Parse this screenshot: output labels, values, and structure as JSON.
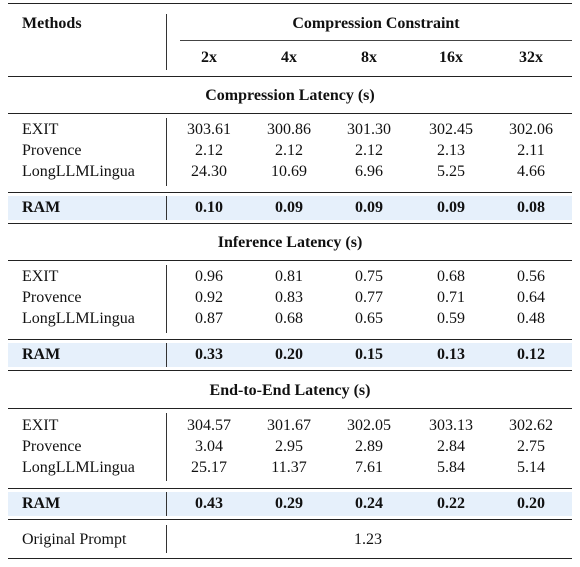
{
  "header": {
    "methods_label": "Methods",
    "constraint_label": "Compression Constraint",
    "columns": [
      "2x",
      "4x",
      "8x",
      "16x",
      "32x"
    ]
  },
  "sections": [
    {
      "title": "Compression Latency (s)",
      "rows": [
        {
          "method": "EXIT",
          "values": [
            "303.61",
            "300.86",
            "301.30",
            "302.45",
            "302.06"
          ]
        },
        {
          "method": "Provence",
          "values": [
            "2.12",
            "2.12",
            "2.12",
            "2.13",
            "2.11"
          ]
        },
        {
          "method": "LongLLMLingua",
          "values": [
            "24.30",
            "10.69",
            "6.96",
            "5.25",
            "4.66"
          ]
        }
      ],
      "ram": {
        "method": "RAM",
        "values": [
          "0.10",
          "0.09",
          "0.09",
          "0.09",
          "0.08"
        ]
      }
    },
    {
      "title": "Inference Latency (s)",
      "rows": [
        {
          "method": "EXIT",
          "values": [
            "0.96",
            "0.81",
            "0.75",
            "0.68",
            "0.56"
          ]
        },
        {
          "method": "Provence",
          "values": [
            "0.92",
            "0.83",
            "0.77",
            "0.71",
            "0.64"
          ]
        },
        {
          "method": "LongLLMLingua",
          "values": [
            "0.87",
            "0.68",
            "0.65",
            "0.59",
            "0.48"
          ]
        }
      ],
      "ram": {
        "method": "RAM",
        "values": [
          "0.33",
          "0.20",
          "0.15",
          "0.13",
          "0.12"
        ]
      }
    },
    {
      "title": "End-to-End Latency (s)",
      "rows": [
        {
          "method": "EXIT",
          "values": [
            "304.57",
            "301.67",
            "302.05",
            "303.13",
            "302.62"
          ]
        },
        {
          "method": "Provence",
          "values": [
            "3.04",
            "2.95",
            "2.89",
            "2.84",
            "2.75"
          ]
        },
        {
          "method": "LongLLMLingua",
          "values": [
            "25.17",
            "11.37",
            "7.61",
            "5.84",
            "5.14"
          ]
        }
      ],
      "ram": {
        "method": "RAM",
        "values": [
          "0.43",
          "0.29",
          "0.24",
          "0.22",
          "0.20"
        ]
      }
    }
  ],
  "original_prompt": {
    "method": "Original Prompt",
    "value": "1.23"
  },
  "colors": {
    "ram_highlight": "#e6f0fb"
  }
}
